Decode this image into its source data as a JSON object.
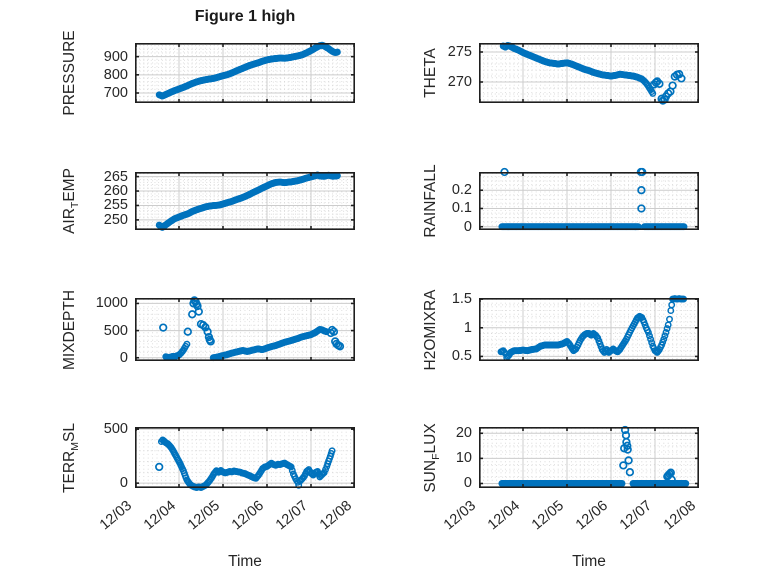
{
  "figure": {
    "title": "Figure 1 high",
    "xlabel": "Time",
    "marker_color": "#0072BD",
    "axis_color": "#1f1f1f",
    "grid_color": "#cccccc",
    "minor_grid_color": "#d6d6d6",
    "background": "#ffffff"
  },
  "x_axis": {
    "tick_labels": [
      "12/03",
      "12/04",
      "12/05",
      "12/06",
      "12/07",
      "12/08"
    ],
    "tick_values": [
      3,
      4,
      5,
      6,
      7,
      8
    ],
    "limits": [
      3,
      8
    ]
  },
  "chart_data": [
    {
      "type": "scatter",
      "name": "PRESSURE",
      "row": 0,
      "col": 0,
      "ylabel": "PRESSURE",
      "ylabel_parts": [
        {
          "text": "PRESSURE"
        }
      ],
      "yticks": [
        700,
        800,
        900
      ],
      "ylim": [
        645,
        975
      ],
      "yminor": 20,
      "series": [
        {
          "mode": "dense",
          "step": 0.022,
          "x": [
            3.55,
            3.62,
            3.7,
            3.8,
            3.9,
            4.0,
            4.1,
            4.2,
            4.3,
            4.4,
            4.5,
            4.6,
            4.7,
            4.8,
            4.9,
            5.0,
            5.1,
            5.2,
            5.3,
            5.4,
            5.5,
            5.6,
            5.7,
            5.8,
            5.9,
            6.0,
            6.1,
            6.2,
            6.3,
            6.4,
            6.5,
            6.6,
            6.7,
            6.8,
            6.9,
            7.0,
            7.1,
            7.2,
            7.25,
            7.3,
            7.35,
            7.4,
            7.45,
            7.5,
            7.55,
            7.6
          ],
          "y": [
            690,
            683,
            692,
            703,
            713,
            722,
            731,
            741,
            752,
            761,
            768,
            773,
            777,
            781,
            788,
            795,
            801,
            810,
            821,
            831,
            841,
            851,
            859,
            866,
            875,
            882,
            887,
            890,
            892,
            891,
            894,
            899,
            904,
            910,
            921,
            933,
            948,
            960,
            963,
            958,
            951,
            944,
            935,
            927,
            922,
            925
          ]
        }
      ]
    },
    {
      "type": "scatter",
      "name": "THETA",
      "row": 0,
      "col": 1,
      "ylabel": "THETA",
      "ylabel_parts": [
        {
          "text": "THETA"
        }
      ],
      "yticks": [
        270,
        275
      ],
      "ylim": [
        266.5,
        276.5
      ],
      "yminor": 1,
      "series": [
        {
          "mode": "dense",
          "step": 0.022,
          "x": [
            3.55,
            3.6,
            3.65,
            3.7,
            3.8,
            3.9,
            4.0,
            4.1,
            4.2,
            4.3,
            4.4,
            4.5,
            4.6,
            4.7,
            4.8,
            4.9,
            5.0,
            5.1,
            5.2,
            5.3,
            5.4,
            5.5,
            5.6,
            5.7,
            5.8,
            5.9,
            6.0,
            6.1,
            6.2,
            6.3,
            6.4,
            6.5,
            6.6,
            6.7,
            6.75,
            6.8,
            6.85,
            6.9,
            6.95
          ],
          "y": [
            276.0,
            275.8,
            276.1,
            276.0,
            275.6,
            275.3,
            274.9,
            274.6,
            274.3,
            274.0,
            273.7,
            273.4,
            273.2,
            273.1,
            273.0,
            273.1,
            273.2,
            273.0,
            272.7,
            272.4,
            272.1,
            271.9,
            271.6,
            271.4,
            271.2,
            271.1,
            271.0,
            271.1,
            271.3,
            271.2,
            271.1,
            271.0,
            270.8,
            270.5,
            270.2,
            269.8,
            269.3,
            268.7,
            268.1
          ]
        },
        {
          "mode": "points",
          "x": [
            6.98,
            7.02,
            7.05,
            7.1,
            7.15,
            7.18,
            7.22,
            7.25,
            7.3,
            7.35,
            7.4,
            7.45,
            7.5,
            7.55,
            7.6
          ],
          "y": [
            269.6,
            269.9,
            270.1,
            269.7,
            267.2,
            266.9,
            267.1,
            267.6,
            268.1,
            268.4,
            269.4,
            270.9,
            271.2,
            271.3,
            270.6
          ]
        }
      ]
    },
    {
      "type": "scatter",
      "name": "AIR_TEMP",
      "row": 1,
      "col": 0,
      "ylabel": "AIR_TEMP",
      "ylabel_parts": [
        {
          "text": "AIR"
        },
        {
          "sub": "T"
        },
        {
          "text": "EMP"
        }
      ],
      "yticks": [
        250,
        255,
        260,
        265
      ],
      "ylim": [
        246.5,
        266.6
      ],
      "yminor": 1,
      "series": [
        {
          "mode": "dense",
          "step": 0.022,
          "x": [
            3.55,
            3.62,
            3.7,
            3.8,
            3.9,
            4.0,
            4.1,
            4.2,
            4.3,
            4.4,
            4.5,
            4.6,
            4.7,
            4.8,
            4.9,
            5.0,
            5.1,
            5.2,
            5.3,
            5.4,
            5.5,
            5.6,
            5.7,
            5.8,
            5.9,
            6.0,
            6.1,
            6.2,
            6.3,
            6.4,
            6.5,
            6.6,
            6.7,
            6.8,
            6.9,
            7.0,
            7.1,
            7.15,
            7.2,
            7.3,
            7.4,
            7.5,
            7.6
          ],
          "y": [
            248.2,
            247.4,
            248.3,
            249.4,
            250.4,
            251.0,
            251.6,
            252.1,
            252.9,
            253.5,
            254.0,
            254.5,
            254.8,
            255.0,
            255.1,
            255.5,
            256.0,
            256.4,
            257.0,
            257.5,
            258.1,
            258.8,
            259.6,
            260.3,
            261.1,
            261.8,
            262.5,
            263.0,
            263.1,
            262.9,
            263.1,
            263.3,
            263.6,
            264.0,
            264.5,
            264.9,
            265.3,
            265.6,
            265.2,
            265.1,
            265.5,
            265.1,
            265.3
          ]
        }
      ]
    },
    {
      "type": "scatter",
      "name": "RAINFALL",
      "row": 1,
      "col": 1,
      "ylabel": "RAINFALL",
      "ylabel_parts": [
        {
          "text": "RAINFALL"
        }
      ],
      "yticks": [
        0,
        0.1,
        0.2
      ],
      "ylim": [
        -0.018,
        0.3
      ],
      "yminor": 0.025,
      "series": [
        {
          "mode": "dense",
          "step": 0.02,
          "x": [
            3.52,
            6.62
          ],
          "y": [
            0,
            0
          ]
        },
        {
          "mode": "dense",
          "step": 0.02,
          "x": [
            6.76,
            7.66
          ],
          "y": [
            0,
            0
          ]
        },
        {
          "mode": "points",
          "x": [
            3.58,
            6.68,
            6.71,
            6.69,
            6.69
          ],
          "y": [
            0.3,
            0.3,
            0.3,
            0.2,
            0.1
          ]
        }
      ]
    },
    {
      "type": "scatter",
      "name": "MIXDEPTH",
      "row": 2,
      "col": 0,
      "ylabel": "MIXDEPTH",
      "ylabel_parts": [
        {
          "text": "MIXDEPTH"
        }
      ],
      "yticks": [
        0,
        500,
        1000
      ],
      "ylim": [
        -60,
        1100
      ],
      "yminor": 100,
      "series": [
        {
          "mode": "dense",
          "step": 0.025,
          "x": [
            3.7,
            3.75,
            3.8,
            3.85,
            3.9,
            3.95,
            4.0,
            4.05,
            4.1,
            4.15,
            4.18
          ],
          "y": [
            20,
            5,
            10,
            25,
            20,
            35,
            50,
            90,
            140,
            210,
            250
          ]
        },
        {
          "mode": "points",
          "x": [
            3.64,
            4.2,
            4.3,
            4.33,
            4.35,
            4.38,
            4.4,
            4.42,
            4.45,
            4.5,
            4.55,
            4.6,
            4.65,
            4.68,
            4.7,
            4.72
          ],
          "y": [
            555,
            480,
            800,
            1000,
            1055,
            1030,
            990,
            950,
            850,
            620,
            600,
            560,
            480,
            380,
            330,
            300
          ]
        },
        {
          "mode": "dense",
          "step": 0.025,
          "x": [
            4.78,
            4.85,
            4.9,
            5.0,
            5.1,
            5.2,
            5.3,
            5.4,
            5.45,
            5.5,
            5.55,
            5.6,
            5.7,
            5.8,
            5.85,
            5.9,
            6.0,
            6.1,
            6.2,
            6.3,
            6.4,
            6.5,
            6.6,
            6.7,
            6.8,
            6.9,
            7.0,
            7.05,
            7.1,
            7.15,
            7.2,
            7.25,
            7.3,
            7.35
          ],
          "y": [
            0,
            10,
            20,
            40,
            60,
            85,
            105,
            125,
            135,
            125,
            115,
            125,
            145,
            165,
            155,
            150,
            180,
            205,
            225,
            255,
            285,
            305,
            330,
            355,
            385,
            405,
            425,
            445,
            465,
            495,
            520,
            515,
            495,
            480
          ]
        },
        {
          "mode": "points",
          "x": [
            7.45,
            7.48,
            7.52,
            7.55,
            7.58,
            7.62,
            7.66
          ],
          "y": [
            455,
            510,
            480,
            300,
            255,
            230,
            210
          ]
        }
      ]
    },
    {
      "type": "scatter",
      "name": "H2OMIXRA",
      "row": 2,
      "col": 1,
      "ylabel": "H2OMIXRA",
      "ylabel_parts": [
        {
          "text": "H2OMIXRA"
        }
      ],
      "yticks": [
        0.5,
        1,
        1.5
      ],
      "ylim": [
        0.42,
        1.52
      ],
      "yminor": 0.1,
      "series": [
        {
          "mode": "dense",
          "step": 0.022,
          "x": [
            3.5,
            3.55,
            3.6,
            3.63,
            3.68,
            3.72,
            3.8,
            3.9,
            4.0,
            4.1,
            4.2,
            4.3,
            4.4,
            4.5,
            4.6,
            4.7,
            4.8,
            4.9,
            5.0,
            5.05,
            5.1,
            5.15,
            5.2,
            5.25,
            5.3,
            5.35,
            5.4,
            5.45,
            5.5,
            5.55,
            5.6,
            5.65,
            5.7,
            5.75,
            5.8,
            5.85,
            5.9,
            5.95,
            6.0,
            6.05,
            6.1,
            6.15,
            6.2,
            6.25,
            6.3,
            6.35,
            6.4,
            6.45,
            6.5,
            6.55,
            6.6,
            6.65,
            6.7,
            6.75,
            6.8,
            6.85,
            6.9,
            6.95,
            7.0,
            7.05,
            7.1,
            7.15,
            7.2,
            7.25,
            7.3,
            7.33,
            7.36,
            7.4,
            7.45,
            7.5,
            7.55,
            7.6,
            7.65
          ],
          "y": [
            0.58,
            0.6,
            0.55,
            0.48,
            0.52,
            0.57,
            0.6,
            0.6,
            0.61,
            0.6,
            0.62,
            0.63,
            0.68,
            0.7,
            0.7,
            0.7,
            0.7,
            0.72,
            0.76,
            0.72,
            0.66,
            0.6,
            0.63,
            0.7,
            0.78,
            0.84,
            0.88,
            0.9,
            0.9,
            0.87,
            0.9,
            0.87,
            0.82,
            0.72,
            0.62,
            0.57,
            0.62,
            0.57,
            0.6,
            0.63,
            0.6,
            0.58,
            0.62,
            0.68,
            0.74,
            0.8,
            0.88,
            0.96,
            1.03,
            1.1,
            1.17,
            1.2,
            1.18,
            1.1,
            1.0,
            0.92,
            0.8,
            0.68,
            0.6,
            0.57,
            0.62,
            0.7,
            0.8,
            0.92,
            1.05,
            1.15,
            1.3,
            1.5,
            1.51,
            1.5,
            1.51,
            1.5,
            1.5
          ]
        }
      ]
    },
    {
      "type": "scatter",
      "name": "TERR_MSL",
      "row": 3,
      "col": 0,
      "ylabel": "TERR_MSL",
      "ylabel_parts": [
        {
          "text": "TERR"
        },
        {
          "sub": "M"
        },
        {
          "text": "SL"
        }
      ],
      "yticks": [
        0,
        500
      ],
      "ylim": [
        -45,
        520
      ],
      "yminor": 100,
      "series": [
        {
          "mode": "points",
          "x": [
            3.55
          ],
          "y": [
            150
          ]
        },
        {
          "mode": "dense",
          "step": 0.022,
          "x": [
            3.6,
            3.63,
            3.66,
            3.7,
            3.74,
            3.78,
            3.82,
            3.86,
            3.9,
            3.94,
            3.98,
            4.02,
            4.06,
            4.1,
            4.14,
            4.18,
            4.22,
            4.26,
            4.3,
            4.35,
            4.4,
            4.45,
            4.5,
            4.55,
            4.6,
            4.65,
            4.7,
            4.75,
            4.8,
            4.85,
            4.9,
            4.95,
            5.0,
            5.05,
            5.1,
            5.15,
            5.2,
            5.25,
            5.3,
            5.35,
            5.4,
            5.45,
            5.5,
            5.55,
            5.6,
            5.65,
            5.7,
            5.75,
            5.8,
            5.85,
            5.9,
            5.95,
            6.0,
            6.05,
            6.1,
            6.15,
            6.2,
            6.25,
            6.3,
            6.35,
            6.4,
            6.45,
            6.5,
            6.55,
            6.6,
            6.65,
            6.7,
            6.72,
            6.75,
            6.8,
            6.85,
            6.9,
            6.95,
            7.0,
            7.05,
            7.1,
            7.15,
            7.2,
            7.25,
            7.3,
            7.33,
            7.36,
            7.4,
            7.44,
            7.48
          ],
          "y": [
            385,
            400,
            390,
            375,
            365,
            350,
            330,
            305,
            275,
            245,
            215,
            185,
            150,
            115,
            70,
            30,
            5,
            -15,
            -25,
            -35,
            -40,
            -35,
            -40,
            -30,
            -20,
            0,
            25,
            55,
            90,
            115,
            100,
            118,
            102,
            95,
            100,
            108,
            104,
            112,
            108,
            104,
            100,
            92,
            88,
            78,
            70,
            60,
            50,
            45,
            70,
            100,
            135,
            150,
            155,
            170,
            185,
            172,
            165,
            175,
            172,
            180,
            186,
            172,
            162,
            150,
            85,
            40,
            8,
            -20,
            20,
            40,
            65,
            108,
            125,
            92,
            75,
            98,
            108,
            58,
            78,
            98,
            125,
            155,
            205,
            250,
            300
          ]
        }
      ]
    },
    {
      "type": "scatter",
      "name": "SUN_FLUX",
      "row": 3,
      "col": 1,
      "ylabel": "SUN_FLUX",
      "ylabel_parts": [
        {
          "text": "SUN"
        },
        {
          "sub": "F"
        },
        {
          "text": "LUX"
        }
      ],
      "yticks": [
        0,
        10,
        20
      ],
      "ylim": [
        -1.8,
        22.5
      ],
      "yminor": 2.5,
      "series": [
        {
          "mode": "dense",
          "step": 0.02,
          "x": [
            3.52,
            6.25
          ],
          "y": [
            0,
            0
          ]
        },
        {
          "mode": "dense",
          "step": 0.02,
          "x": [
            6.5,
            7.7
          ],
          "y": [
            0,
            0
          ]
        },
        {
          "mode": "points",
          "x": [
            6.28,
            6.3,
            6.32,
            6.34,
            6.35,
            6.37,
            6.38,
            6.4,
            6.43,
            7.28,
            7.3,
            7.33,
            7.36,
            7.38
          ],
          "y": [
            7.2,
            14.0,
            21.3,
            19.2,
            16.5,
            15.0,
            13.5,
            9.2,
            4.5,
            2.8,
            3.2,
            3.8,
            4.3,
            1.5
          ]
        }
      ]
    }
  ]
}
